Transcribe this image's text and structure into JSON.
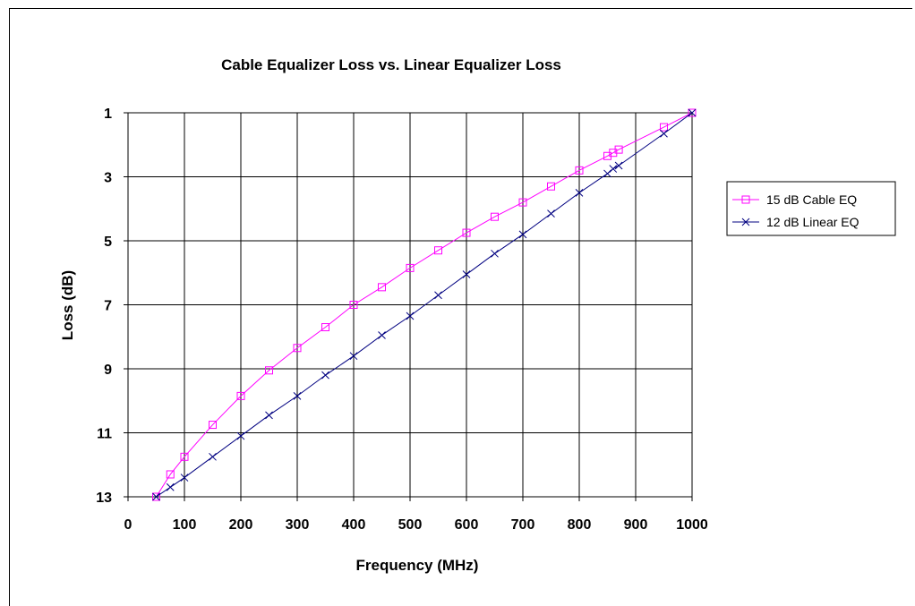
{
  "chart_data": {
    "type": "line",
    "title": "Cable Equalizer Loss vs. Linear Equalizer Loss",
    "xlabel": "Frequency (MHz)",
    "ylabel": "Loss (dB)",
    "xlim": [
      0,
      1000
    ],
    "ylim": [
      1,
      13
    ],
    "y_inverted": true,
    "x_ticks": [
      "0",
      "100",
      "200",
      "300",
      "400",
      "500",
      "600",
      "700",
      "800",
      "900",
      "1000"
    ],
    "y_ticks": [
      "1",
      "3",
      "5",
      "7",
      "9",
      "11",
      "13"
    ],
    "grid": true,
    "legend_position": "right",
    "series": [
      {
        "name": "15 dB Cable EQ",
        "color": "#ff00ff",
        "marker": "square",
        "x": [
          50,
          75,
          100,
          150,
          200,
          250,
          300,
          350,
          400,
          450,
          500,
          550,
          600,
          650,
          700,
          750,
          800,
          850,
          860,
          870,
          950,
          1000
        ],
        "y": [
          13.0,
          12.3,
          11.75,
          10.75,
          9.85,
          9.05,
          8.35,
          7.7,
          7.0,
          6.45,
          5.85,
          5.3,
          4.75,
          4.25,
          3.8,
          3.3,
          2.8,
          2.35,
          2.25,
          2.15,
          1.45,
          1.0
        ]
      },
      {
        "name": "12 dB Linear EQ",
        "color": "#000080",
        "marker": "x",
        "x": [
          50,
          75,
          100,
          150,
          200,
          250,
          300,
          350,
          400,
          450,
          500,
          550,
          600,
          650,
          700,
          750,
          800,
          850,
          860,
          870,
          950,
          1000
        ],
        "y": [
          13.0,
          12.7,
          12.4,
          11.75,
          11.1,
          10.45,
          9.85,
          9.2,
          8.6,
          7.95,
          7.35,
          6.7,
          6.05,
          5.4,
          4.8,
          4.15,
          3.5,
          2.9,
          2.75,
          2.65,
          1.65,
          1.0
        ]
      }
    ]
  }
}
